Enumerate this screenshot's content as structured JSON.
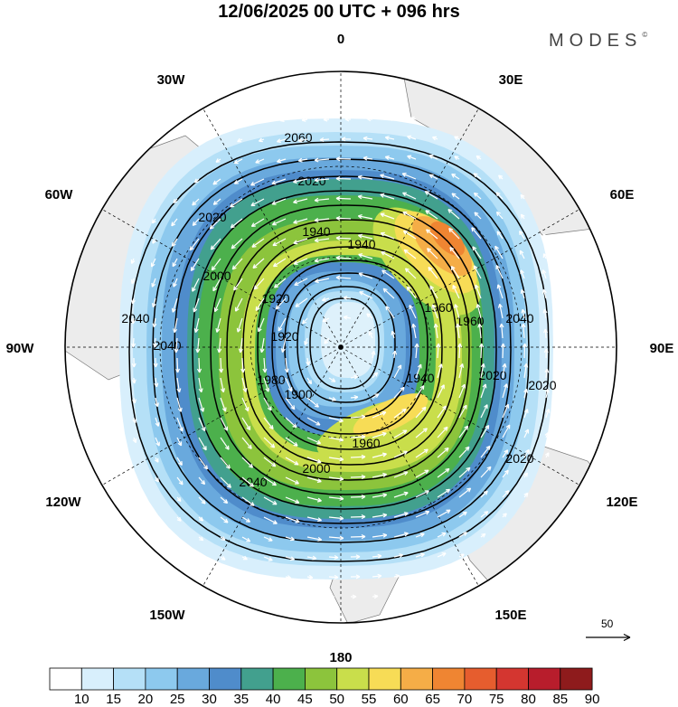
{
  "header": {
    "title": "12/06/2025  00 UTC  + 096 hrs",
    "brand": "MODES",
    "brand_mark": "©"
  },
  "map": {
    "projection": "polar stereographic, north pole centered",
    "longitude_labels": [
      "0",
      "30E",
      "60E",
      "90E",
      "120E",
      "150E",
      "180",
      "150W",
      "120W",
      "90W",
      "60W",
      "30W"
    ],
    "contour_labels": [
      "2060",
      "2040",
      "2020",
      "2000",
      "1980",
      "1960",
      "1940",
      "1920",
      "1900"
    ],
    "reference_vector_value": "50"
  },
  "colorbar": {
    "levels": [
      "10",
      "15",
      "20",
      "25",
      "30",
      "35",
      "40",
      "45",
      "50",
      "55",
      "60",
      "65",
      "70",
      "75",
      "80",
      "85",
      "90"
    ],
    "colors": [
      "#ffffff",
      "#d8effc",
      "#b5e0f7",
      "#8dc9ee",
      "#69a9dd",
      "#4f8ccb",
      "#42a08e",
      "#4cb04c",
      "#8cc43c",
      "#c9de4b",
      "#f7dc56",
      "#f5ad47",
      "#ef8532",
      "#e65d2e",
      "#d43630",
      "#b81d2c",
      "#8e1b1c"
    ]
  }
}
